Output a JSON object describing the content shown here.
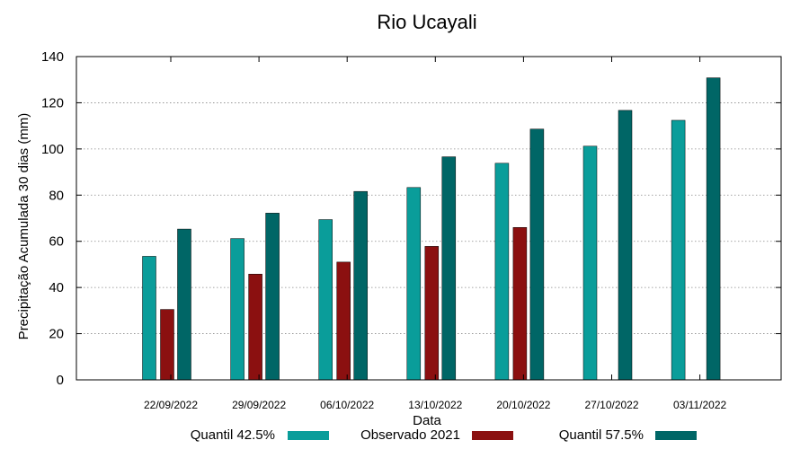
{
  "chart_data": {
    "type": "bar",
    "title": "Rio Ucayali",
    "xlabel": "Data",
    "ylabel": "Precipitação Acumulada 30 dias (mm)",
    "ylim": [
      0,
      140
    ],
    "yticks": [
      0,
      20,
      40,
      60,
      80,
      100,
      120,
      140
    ],
    "grid": true,
    "legend_position": "bottom",
    "categories": [
      "22/09/2022",
      "29/09/2022",
      "06/10/2022",
      "13/10/2022",
      "20/10/2022",
      "27/10/2022",
      "03/11/2022"
    ],
    "series": [
      {
        "name": "Quantil 42.5%",
        "color": "#0a9d9a",
        "values": [
          53.5,
          61.2,
          69.4,
          83.3,
          93.8,
          101.2,
          112.4
        ]
      },
      {
        "name": "Observado 2021",
        "color": "#8b1010",
        "values": [
          30.5,
          45.8,
          51.0,
          57.8,
          66.0,
          null,
          null
        ]
      },
      {
        "name": "Quantil 57.5%",
        "color": "#006666",
        "values": [
          65.3,
          72.2,
          81.6,
          96.6,
          108.6,
          116.7,
          130.8
        ]
      }
    ]
  }
}
